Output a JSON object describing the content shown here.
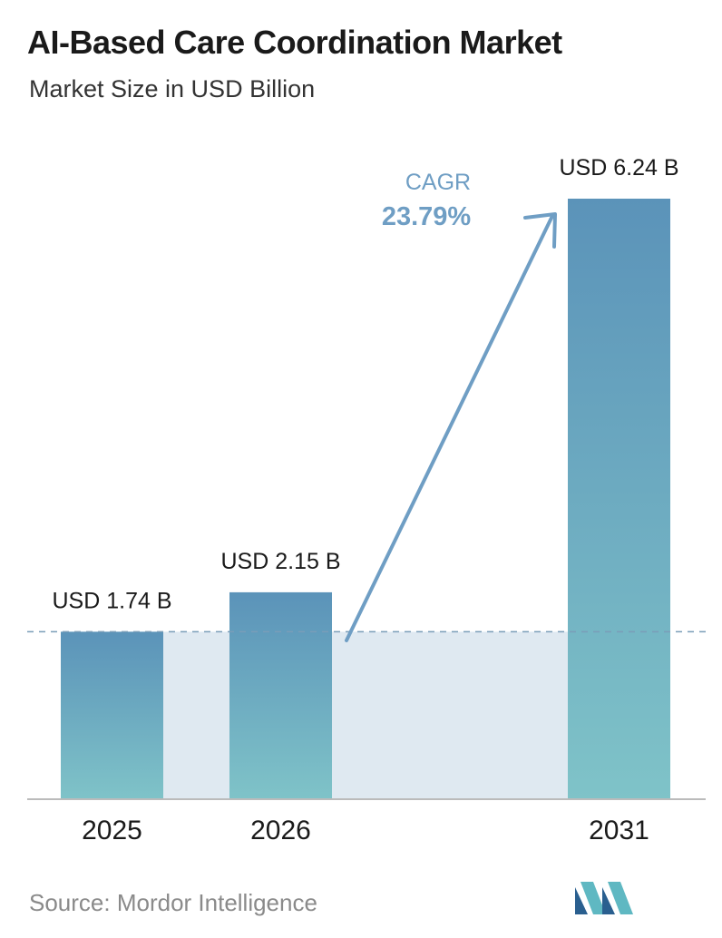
{
  "header": {
    "title": "AI-Based Care Coordination Market",
    "subtitle": "Market Size in USD Billion"
  },
  "footer": {
    "source": "Source: Mordor Intelligence"
  },
  "cagr": {
    "label": "CAGR",
    "value": "23.79%"
  },
  "colors": {
    "bar_top": "#5b93b9",
    "bar_bottom": "#7fc3c8",
    "band": "#dfe9f1",
    "arrow": "#6f9ec4",
    "cagr_text": "#6f9ec4",
    "axis": "#bbbbbb",
    "dashed_line": "#7a9db8"
  },
  "chart_data": {
    "type": "bar",
    "title": "AI-Based Care Coordination Market",
    "ylabel": "Market Size in USD Billion",
    "categories": [
      "2025",
      "2026",
      "2031"
    ],
    "values": [
      1.74,
      2.15,
      6.24
    ],
    "data_labels": [
      "USD 1.74 B",
      "USD 2.15 B",
      "USD 6.24 B"
    ],
    "ylim": [
      0,
      6.24
    ],
    "grid": false,
    "legend": "none"
  }
}
